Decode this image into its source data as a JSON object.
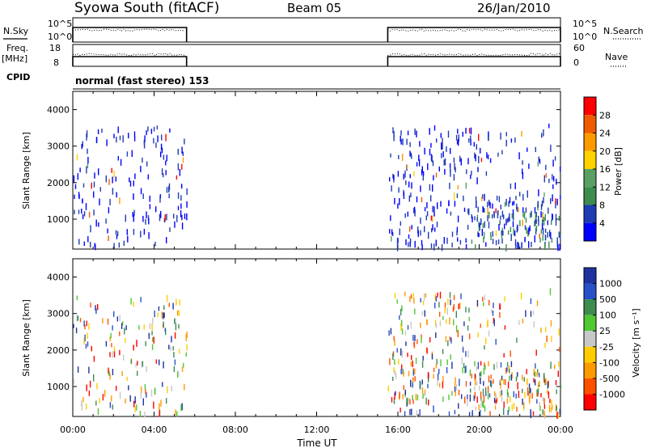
{
  "header": {
    "station": "Syowa South (fitACF)",
    "beam": "Beam 05",
    "date": "26/Jan/2010"
  },
  "labels": {
    "nsky": "N.Sky",
    "nsearch": "N.Search",
    "freq": "Freq.",
    "mhz": "[MHz]",
    "nave": "Nave",
    "cpid": "CPID",
    "mode": "normal (fast stereo) 153",
    "time_axis": "Time UT",
    "slant_range": "Slant Range [km]",
    "power": "Power [dB]",
    "velocity": "Velocity [m s⁻¹]"
  },
  "noise_axis": {
    "left_ticks": [
      "10^5",
      "10^0"
    ],
    "right_ticks": [
      "10^5",
      "10^0"
    ]
  },
  "freq_axis": {
    "left_ticks": [
      "18",
      "8"
    ],
    "right_ticks": [
      "60",
      "0"
    ]
  },
  "time_ticks": [
    "00:00",
    "04:00",
    "08:00",
    "12:00",
    "16:00",
    "20:00",
    "00:00"
  ],
  "range_ticks": [
    "1000",
    "2000",
    "3000",
    "4000"
  ],
  "power_scale": {
    "ticks": [
      "28",
      "24",
      "20",
      "16",
      "12",
      "8",
      "4"
    ],
    "colors": [
      "#ff0000",
      "#f05a00",
      "#ff9900",
      "#ffd200",
      "#5aa064",
      "#3c8c50",
      "#1e3cb4",
      "#0000ff"
    ]
  },
  "velocity_scale": {
    "ticks": [
      "1000",
      "500",
      "100",
      "25",
      "-25",
      "-100",
      "-500",
      "-1000"
    ],
    "colors": [
      "#1e32a0",
      "#2850c8",
      "#3c8c50",
      "#50c832",
      "#c8c8c8",
      "#ffcc00",
      "#ff9900",
      "#ff5000",
      "#ff0000"
    ]
  },
  "chart_data": {
    "type": "heatmap",
    "title": "Syowa South (fitACF)",
    "xlabel": "Time UT",
    "ylabel": "Slant Range [km]",
    "xlim": [
      "00:00",
      "24:00"
    ],
    "ylim": [
      180,
      4500
    ],
    "observing_intervals_ut_hours": [
      [
        0.0,
        5.6
      ],
      [
        15.5,
        24.0
      ]
    ]
  }
}
